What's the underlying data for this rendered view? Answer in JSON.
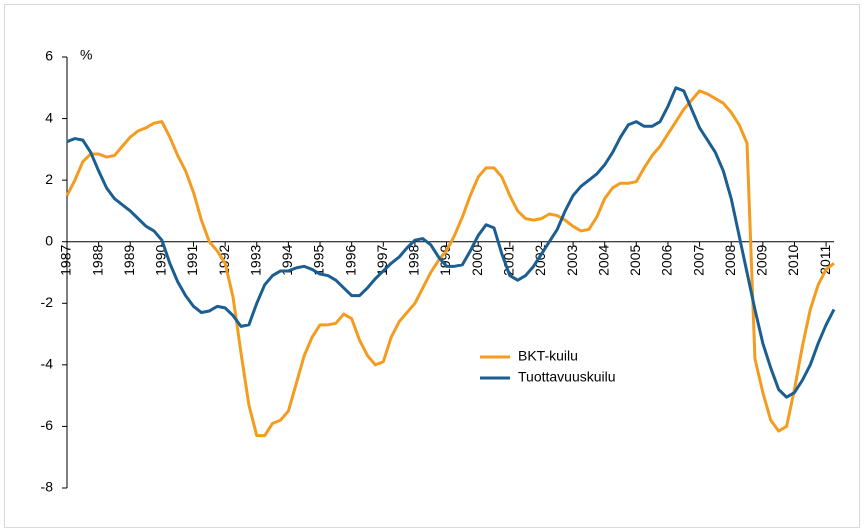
{
  "chart_data": {
    "type": "line",
    "y_label": "%",
    "x": [
      1987,
      1987.25,
      1987.5,
      1987.75,
      1988,
      1988.25,
      1988.5,
      1988.75,
      1989,
      1989.25,
      1989.5,
      1989.75,
      1990,
      1990.25,
      1990.5,
      1990.75,
      1991,
      1991.25,
      1991.5,
      1991.75,
      1992,
      1992.25,
      1992.5,
      1992.75,
      1993,
      1993.25,
      1993.5,
      1993.75,
      1994,
      1994.25,
      1994.5,
      1994.75,
      1995,
      1995.25,
      1995.5,
      1995.75,
      1996,
      1996.25,
      1996.5,
      1996.75,
      1997,
      1997.25,
      1997.5,
      1997.75,
      1998,
      1998.25,
      1998.5,
      1998.75,
      1999,
      1999.25,
      1999.5,
      1999.75,
      2000,
      2000.25,
      2000.5,
      2000.75,
      2001,
      2001.25,
      2001.5,
      2001.75,
      2002,
      2002.25,
      2002.5,
      2002.75,
      2003,
      2003.25,
      2003.5,
      2003.75,
      2004,
      2004.25,
      2004.5,
      2004.75,
      2005,
      2005.25,
      2005.5,
      2005.75,
      2006,
      2006.25,
      2006.5,
      2006.75,
      2007,
      2007.25,
      2007.5,
      2007.75,
      2008,
      2008.25,
      2008.5,
      2008.75,
      2009,
      2009.25,
      2009.5,
      2009.75,
      2010,
      2010.25,
      2010.5,
      2010.75,
      2011,
      2011.25
    ],
    "series": [
      {
        "name": "BKT-kuilu",
        "color": "#f39c1f",
        "values": [
          1.5,
          2.0,
          2.6,
          2.85,
          2.85,
          2.75,
          2.8,
          3.1,
          3.4,
          3.6,
          3.7,
          3.85,
          3.9,
          3.4,
          2.8,
          2.3,
          1.6,
          0.7,
          0.0,
          -0.3,
          -0.7,
          -1.8,
          -3.6,
          -5.3,
          -6.3,
          -6.3,
          -5.9,
          -5.8,
          -5.5,
          -4.6,
          -3.7,
          -3.1,
          -2.7,
          -2.7,
          -2.65,
          -2.35,
          -2.5,
          -3.2,
          -3.7,
          -4.0,
          -3.9,
          -3.1,
          -2.6,
          -2.3,
          -2.0,
          -1.5,
          -1.0,
          -0.6,
          -0.3,
          0.2,
          0.8,
          1.5,
          2.1,
          2.4,
          2.4,
          2.1,
          1.5,
          1.0,
          0.75,
          0.7,
          0.75,
          0.9,
          0.85,
          0.7,
          0.5,
          0.35,
          0.4,
          0.8,
          1.4,
          1.75,
          1.9,
          1.9,
          1.95,
          2.4,
          2.8,
          3.1,
          3.5,
          3.9,
          4.3,
          4.6,
          4.9,
          4.8,
          4.65,
          4.5,
          4.2,
          3.8,
          3.2,
          -3.8,
          -4.9,
          -5.8,
          -6.15,
          -6.0,
          -4.8,
          -3.4,
          -2.2,
          -1.4,
          -0.9,
          -0.7
        ]
      },
      {
        "name": "Tuottavuuskuilu",
        "color": "#1b5e91",
        "values": [
          3.25,
          3.35,
          3.3,
          2.9,
          2.3,
          1.75,
          1.4,
          1.2,
          1.0,
          0.75,
          0.5,
          0.35,
          0.05,
          -0.7,
          -1.3,
          -1.75,
          -2.1,
          -2.3,
          -2.25,
          -2.1,
          -2.15,
          -2.4,
          -2.75,
          -2.7,
          -2.0,
          -1.4,
          -1.1,
          -0.95,
          -0.95,
          -0.85,
          -0.8,
          -0.9,
          -1.05,
          -1.1,
          -1.25,
          -1.5,
          -1.75,
          -1.75,
          -1.5,
          -1.2,
          -0.95,
          -0.7,
          -0.5,
          -0.2,
          0.05,
          0.1,
          -0.1,
          -0.5,
          -0.8,
          -0.8,
          -0.75,
          -0.3,
          0.2,
          0.55,
          0.45,
          -0.4,
          -1.1,
          -1.25,
          -1.1,
          -0.8,
          -0.4,
          0.0,
          0.4,
          1.0,
          1.5,
          1.8,
          2.0,
          2.2,
          2.5,
          2.9,
          3.4,
          3.8,
          3.9,
          3.75,
          3.75,
          3.9,
          4.4,
          5.0,
          4.9,
          4.3,
          3.7,
          3.3,
          2.9,
          2.3,
          1.4,
          0.2,
          -1.0,
          -2.2,
          -3.3,
          -4.1,
          -4.8,
          -5.05,
          -4.9,
          -4.5,
          -4.0,
          -3.3,
          -2.7,
          -2.2
        ]
      }
    ],
    "xlim": [
      1987,
      2011.25
    ],
    "xticks": [
      1987,
      1988,
      1989,
      1990,
      1991,
      1992,
      1993,
      1994,
      1995,
      1996,
      1997,
      1998,
      1999,
      2000,
      2001,
      2002,
      2003,
      2004,
      2005,
      2006,
      2007,
      2008,
      2009,
      2010,
      2011
    ],
    "ylim": [
      -8,
      6
    ],
    "yticks": [
      -8,
      -6,
      -4,
      -2,
      0,
      2,
      4,
      6
    ],
    "grid": false,
    "legend": "center-right"
  }
}
